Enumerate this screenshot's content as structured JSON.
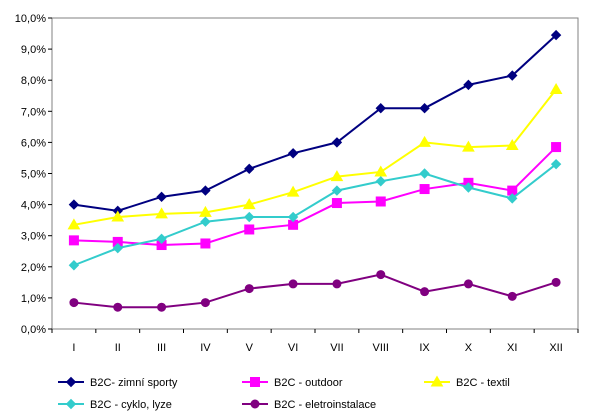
{
  "chart_data": {
    "type": "line",
    "title": "",
    "xlabel": "",
    "ylabel": "",
    "categories": [
      "I",
      "II",
      "III",
      "IV",
      "V",
      "VI",
      "VII",
      "VIII",
      "IX",
      "X",
      "XI",
      "XII"
    ],
    "ylim": [
      0,
      10
    ],
    "yticks": [
      0,
      1,
      2,
      3,
      4,
      5,
      6,
      7,
      8,
      9,
      10
    ],
    "ytick_labels": [
      "0,0%",
      "1,0%",
      "2,0%",
      "3,0%",
      "4,0%",
      "5,0%",
      "6,0%",
      "7,0%",
      "8,0%",
      "9,0%",
      "10,0%"
    ],
    "grid": false,
    "legend_position": "bottom",
    "series": [
      {
        "name": "B2C- zimní sporty",
        "color": "#000080",
        "marker": "diamond",
        "values": [
          4.0,
          3.8,
          4.25,
          4.45,
          5.15,
          5.65,
          6.0,
          7.1,
          7.1,
          7.85,
          8.15,
          9.45
        ]
      },
      {
        "name": "B2C - outdoor",
        "color": "#ff00ff",
        "marker": "square",
        "values": [
          2.85,
          2.8,
          2.7,
          2.75,
          3.2,
          3.35,
          4.05,
          4.1,
          4.5,
          4.7,
          4.45,
          5.85
        ]
      },
      {
        "name": "B2C - textil",
        "color": "#ffff00",
        "marker": "triangle",
        "values": [
          3.35,
          3.6,
          3.7,
          3.75,
          4.0,
          4.4,
          4.9,
          5.05,
          6.0,
          5.85,
          5.9,
          7.7
        ]
      },
      {
        "name": "B2C - cyklo, lyze",
        "color": "#33cccc",
        "marker": "diamond",
        "values": [
          2.05,
          2.6,
          2.9,
          3.45,
          3.6,
          3.6,
          4.45,
          4.75,
          5.0,
          4.55,
          4.2,
          5.3
        ]
      },
      {
        "name": "B2C - eletroinstalace",
        "color": "#800080",
        "marker": "circle",
        "values": [
          0.85,
          0.7,
          0.7,
          0.85,
          1.3,
          1.45,
          1.45,
          1.75,
          1.2,
          1.45,
          1.05,
          1.5
        ]
      }
    ]
  }
}
